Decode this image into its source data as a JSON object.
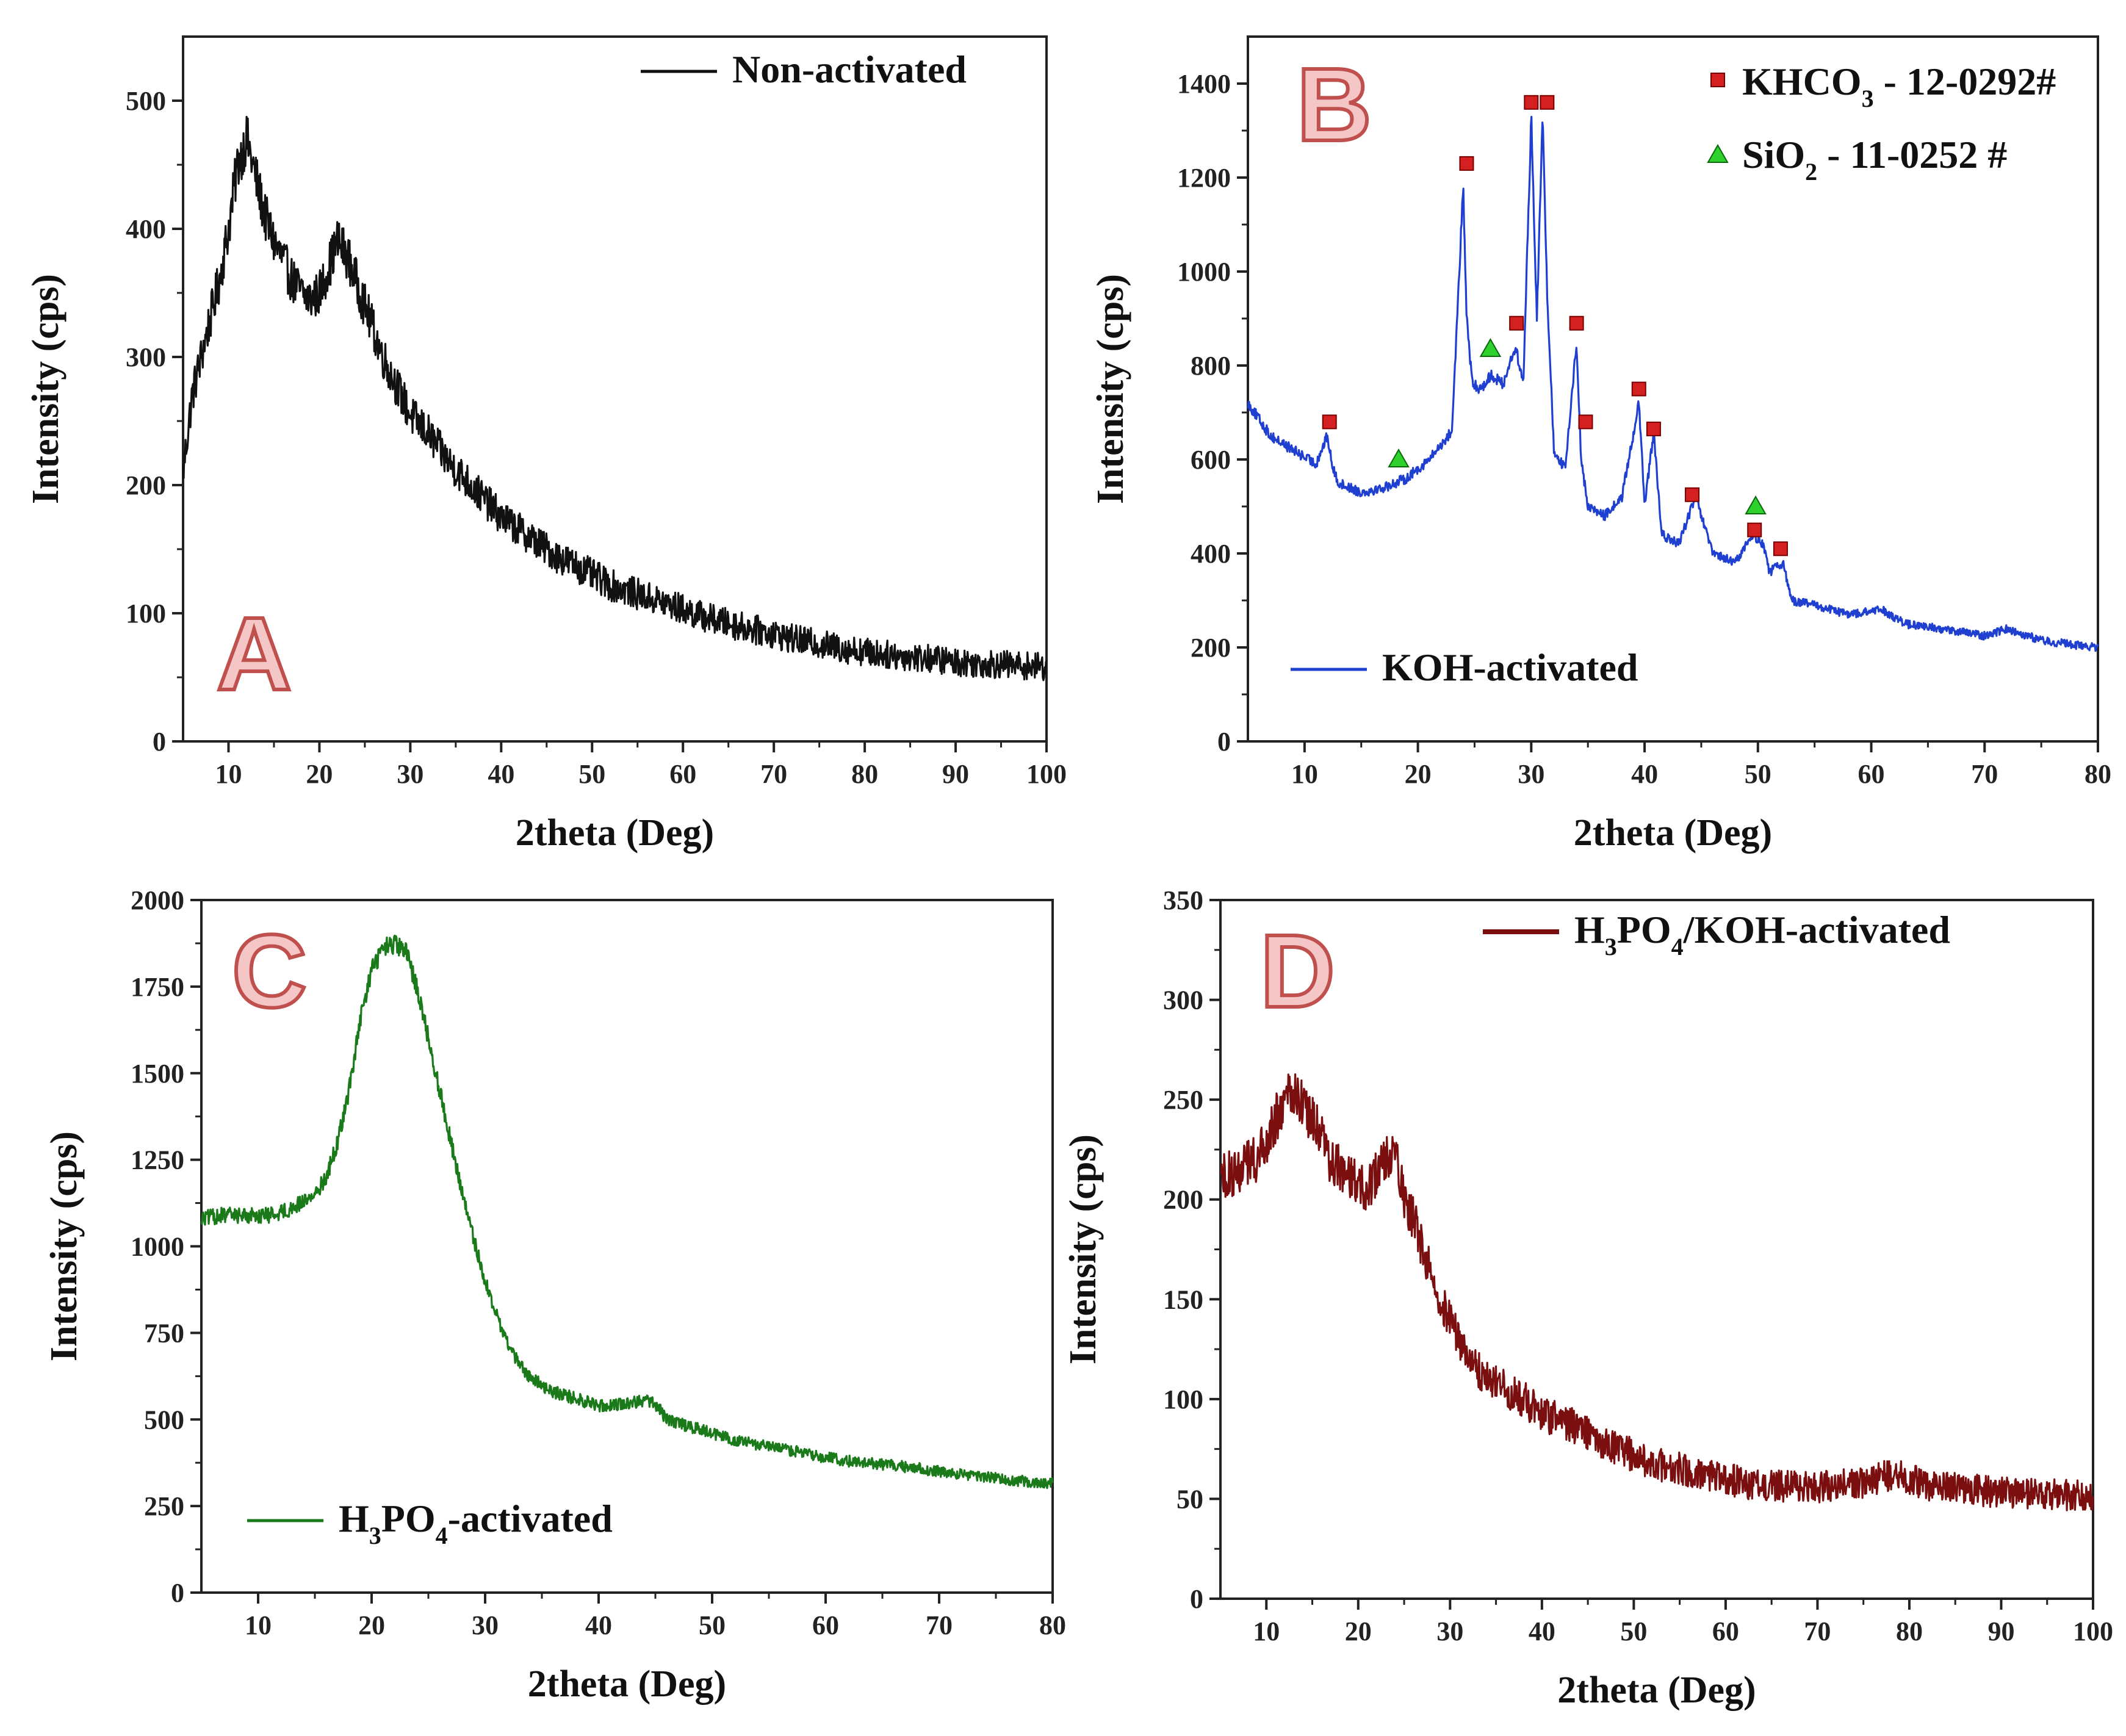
{
  "chart_data": [
    {
      "type": "line",
      "panel": "A",
      "title": "",
      "xlabel": "2theta (Deg)",
      "ylabel": "Intensity (cps)",
      "xlim": [
        5,
        100
      ],
      "ylim": [
        0,
        550
      ],
      "xticks": [
        10,
        20,
        30,
        40,
        50,
        60,
        70,
        80,
        90,
        100
      ],
      "yticks": [
        0,
        100,
        200,
        300,
        400,
        500
      ],
      "color": "#111111",
      "legend": {
        "label": "Non-activated",
        "position": "top-right"
      },
      "series": [
        {
          "name": "Non-activated",
          "x": [
            5,
            6,
            7,
            8,
            9,
            10,
            11,
            12,
            13,
            14,
            15,
            16,
            17,
            18,
            19,
            20,
            21,
            22,
            23,
            24,
            25,
            26,
            27,
            28,
            29,
            30,
            32,
            34,
            36,
            38,
            40,
            42,
            44,
            46,
            48,
            50,
            52,
            55,
            58,
            60,
            62,
            65,
            68,
            70,
            72,
            75,
            78,
            80,
            82,
            85,
            88,
            90,
            92,
            95,
            98,
            100
          ],
          "values": [
            210,
            270,
            300,
            330,
            360,
            400,
            450,
            470,
            440,
            410,
            390,
            375,
            360,
            350,
            345,
            350,
            370,
            390,
            380,
            360,
            340,
            320,
            300,
            285,
            270,
            255,
            240,
            220,
            205,
            190,
            175,
            165,
            155,
            145,
            138,
            130,
            122,
            115,
            108,
            103,
            98,
            92,
            87,
            84,
            80,
            76,
            72,
            70,
            68,
            66,
            64,
            62,
            61,
            60,
            59,
            58
          ]
        }
      ],
      "noise": 16
    },
    {
      "type": "line",
      "panel": "B",
      "title": "",
      "xlabel": "2theta (Deg)",
      "ylabel": "Intensity (cps)",
      "xlim": [
        5,
        80
      ],
      "ylim": [
        0,
        1500
      ],
      "xticks": [
        10,
        20,
        30,
        40,
        50,
        60,
        70,
        80
      ],
      "yticks": [
        0,
        200,
        400,
        600,
        800,
        1000,
        1200,
        1400
      ],
      "color": "#1f3fd0",
      "legend": {
        "label": "KOH-activated",
        "position": "bottom-left"
      },
      "series": [
        {
          "name": "KOH-activated",
          "x": [
            5,
            7,
            9,
            11,
            12,
            12.5,
            13,
            15,
            17,
            19,
            21,
            22,
            23,
            24,
            24.3,
            24.8,
            25.5,
            26.5,
            27.5,
            28.6,
            29.3,
            30.0,
            30.5,
            31.0,
            31.4,
            32.0,
            33.0,
            34.0,
            34.4,
            35.0,
            36.5,
            38.0,
            39.5,
            40.0,
            40.8,
            41.5,
            43,
            44.5,
            46,
            48,
            49.5,
            50.5,
            51,
            52.2,
            53,
            55,
            58,
            61,
            63,
            66,
            70,
            72,
            75,
            78,
            80
          ],
          "values": [
            720,
            650,
            620,
            590,
            650,
            580,
            550,
            530,
            540,
            560,
            600,
            630,
            660,
            1180,
            900,
            760,
            750,
            780,
            760,
            840,
            760,
            1330,
            900,
            1330,
            960,
            620,
            580,
            850,
            600,
            500,
            480,
            520,
            720,
            500,
            660,
            440,
            420,
            520,
            400,
            380,
            440,
            420,
            360,
            380,
            300,
            290,
            270,
            280,
            250,
            240,
            225,
            240,
            215,
            205,
            200
          ]
        }
      ],
      "noise": 12,
      "markers": {
        "KHCO3": {
          "label": "KHCO",
          "sub": "3",
          "suffix": " - 12-0292#",
          "color": "#d42020",
          "shape": "square",
          "x": [
            12.2,
            24.3,
            28.7,
            30.0,
            31.4,
            34.0,
            34.8,
            39.5,
            40.8,
            44.2,
            49.7,
            52.0
          ],
          "y": [
            680,
            1230,
            890,
            1360,
            1360,
            890,
            680,
            750,
            665,
            525,
            450,
            410
          ]
        },
        "SiO2": {
          "label": "SiO",
          "sub": "2",
          "suffix": " - 11-0252 #",
          "color": "#2ed12e",
          "shape": "triangle",
          "x": [
            18.3,
            26.4,
            49.8
          ],
          "y": [
            600,
            835,
            500
          ]
        }
      }
    },
    {
      "type": "line",
      "panel": "C",
      "title": "",
      "xlabel": "2theta (Deg)",
      "ylabel": "Intensity (cps)",
      "xlim": [
        5,
        80
      ],
      "ylim": [
        0,
        2000
      ],
      "xticks": [
        10,
        20,
        30,
        40,
        50,
        60,
        70,
        80
      ],
      "yticks": [
        0,
        250,
        500,
        750,
        1000,
        1250,
        1500,
        1750,
        2000
      ],
      "color": "#1a7a1a",
      "legend": {
        "label": "H",
        "sub1": "3",
        "mid": "PO",
        "sub2": "4",
        "suffix": "-activated",
        "position": "bottom-left"
      },
      "series": [
        {
          "name": "H3PO4-activated",
          "x": [
            5,
            7,
            9,
            11,
            13,
            15,
            16,
            17,
            18,
            19,
            20,
            21,
            22,
            23,
            24,
            25,
            26,
            27,
            28,
            29,
            30,
            31,
            32,
            33,
            34,
            35,
            36,
            38,
            40,
            42,
            44,
            45,
            46,
            48,
            50,
            52,
            55,
            58,
            60,
            62,
            65,
            68,
            70,
            72,
            75,
            78,
            80
          ],
          "values": [
            1080,
            1090,
            1090,
            1090,
            1110,
            1150,
            1200,
            1300,
            1450,
            1650,
            1800,
            1860,
            1870,
            1850,
            1750,
            1600,
            1450,
            1300,
            1150,
            1020,
            900,
            800,
            720,
            660,
            620,
            600,
            580,
            560,
            540,
            545,
            555,
            545,
            500,
            480,
            460,
            440,
            420,
            405,
            390,
            380,
            370,
            360,
            350,
            340,
            330,
            320,
            315
          ]
        }
      ],
      "noise": 22
    },
    {
      "type": "line",
      "panel": "D",
      "title": "",
      "xlabel": "2theta (Deg)",
      "ylabel": "Intensity (cps)",
      "xlim": [
        5,
        100
      ],
      "ylim": [
        0,
        350
      ],
      "xticks": [
        10,
        20,
        30,
        40,
        50,
        60,
        70,
        80,
        90,
        100
      ],
      "yticks": [
        0,
        50,
        100,
        150,
        200,
        250,
        300,
        350
      ],
      "color": "#7b0f0f",
      "legend": {
        "label": "H",
        "sub1": "3",
        "mid": "PO",
        "sub2": "4",
        "suffix": "/KOH-activated",
        "position": "top-right"
      },
      "series": [
        {
          "name": "H3PO4/KOH-activated",
          "x": [
            5,
            7,
            9,
            11,
            13,
            15,
            17,
            19,
            21,
            23,
            24,
            25,
            26,
            27,
            28,
            29,
            30,
            31,
            32,
            34,
            36,
            38,
            40,
            42,
            44,
            46,
            48,
            50,
            52,
            55,
            58,
            60,
            62,
            65,
            68,
            70,
            72,
            75,
            78,
            80,
            82,
            85,
            88,
            90,
            92,
            95,
            98,
            100
          ],
          "values": [
            210,
            215,
            220,
            240,
            255,
            240,
            220,
            210,
            205,
            220,
            230,
            200,
            190,
            175,
            165,
            150,
            140,
            130,
            120,
            110,
            105,
            100,
            92,
            90,
            85,
            80,
            75,
            72,
            68,
            65,
            62,
            60,
            58,
            57,
            56,
            56,
            57,
            58,
            62,
            60,
            57,
            55,
            54,
            53,
            53,
            52,
            52,
            52
          ]
        }
      ],
      "noise": 11
    }
  ]
}
